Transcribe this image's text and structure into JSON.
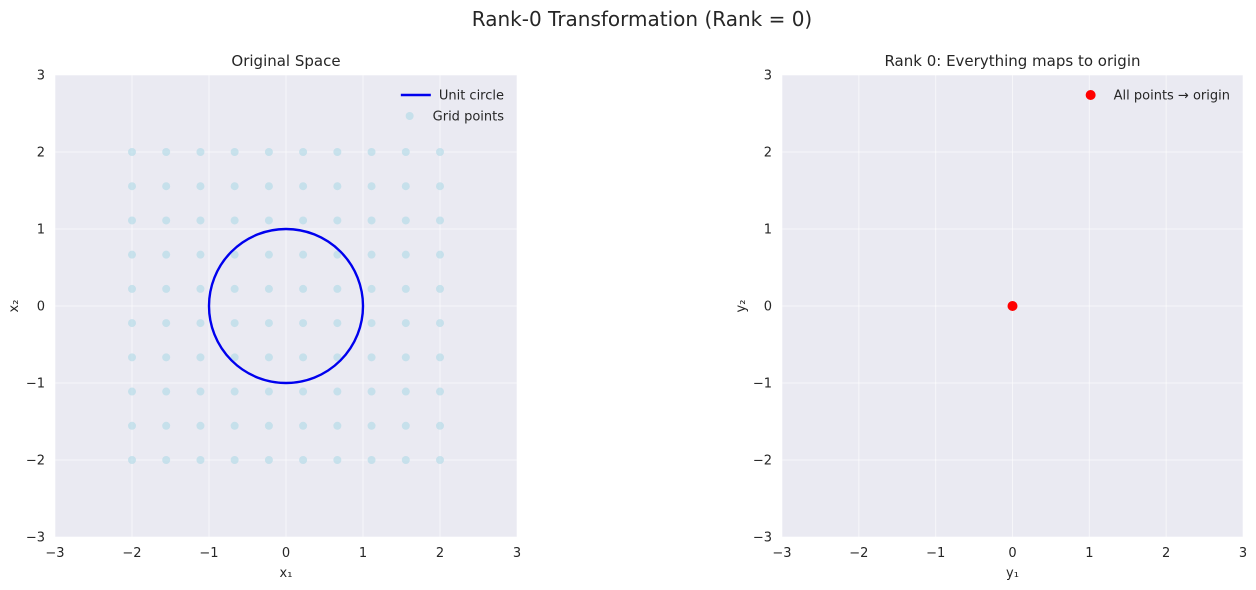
{
  "figure": {
    "suptitle": "Rank-0 Transformation (Rank = 0)"
  },
  "chart_data": [
    {
      "type": "scatter",
      "title": "Original Space",
      "xlabel": "x₁",
      "ylabel": "x₂",
      "xlim": [
        -3,
        3
      ],
      "ylim": [
        -3,
        3
      ],
      "xticks": [
        -3,
        -2,
        -1,
        0,
        1,
        2,
        3
      ],
      "yticks": [
        -3,
        -2,
        -1,
        0,
        1,
        2,
        3
      ],
      "tick_labels_x": [
        "−3",
        "−2",
        "−1",
        "0",
        "1",
        "2",
        "3"
      ],
      "tick_labels_y": [
        "−3",
        "−2",
        "−1",
        "0",
        "1",
        "2",
        "3"
      ],
      "grid": true,
      "legend_position": "top-right",
      "series": [
        {
          "name": "Unit circle",
          "kind": "line",
          "shape": "circle",
          "center": [
            0,
            0
          ],
          "radius": 1,
          "color": "#0000ee"
        },
        {
          "name": "Grid points",
          "kind": "scatter",
          "color": "#add8e6",
          "grid_x": [
            -2,
            -1.556,
            -1.111,
            -0.667,
            -0.222,
            0.222,
            0.667,
            1.111,
            1.556,
            2
          ],
          "grid_y": [
            -2,
            -1.556,
            -1.111,
            -0.667,
            -0.222,
            0.222,
            0.667,
            1.111,
            1.556,
            2
          ]
        }
      ]
    },
    {
      "type": "scatter",
      "title": "Rank 0: Everything maps to origin",
      "xlabel": "y₁",
      "ylabel": "y₂",
      "xlim": [
        -3,
        3
      ],
      "ylim": [
        -3,
        3
      ],
      "xticks": [
        -3,
        -2,
        -1,
        0,
        1,
        2,
        3
      ],
      "yticks": [
        -3,
        -2,
        -1,
        0,
        1,
        2,
        3
      ],
      "tick_labels_x": [
        "−3",
        "−2",
        "−1",
        "0",
        "1",
        "2",
        "3"
      ],
      "tick_labels_y": [
        "−3",
        "−2",
        "−1",
        "0",
        "1",
        "2",
        "3"
      ],
      "grid": true,
      "legend_position": "top-right",
      "series": [
        {
          "name": "All points → origin",
          "kind": "scatter",
          "color": "#ff0000",
          "points": [
            [
              0,
              0
            ]
          ]
        }
      ]
    }
  ]
}
